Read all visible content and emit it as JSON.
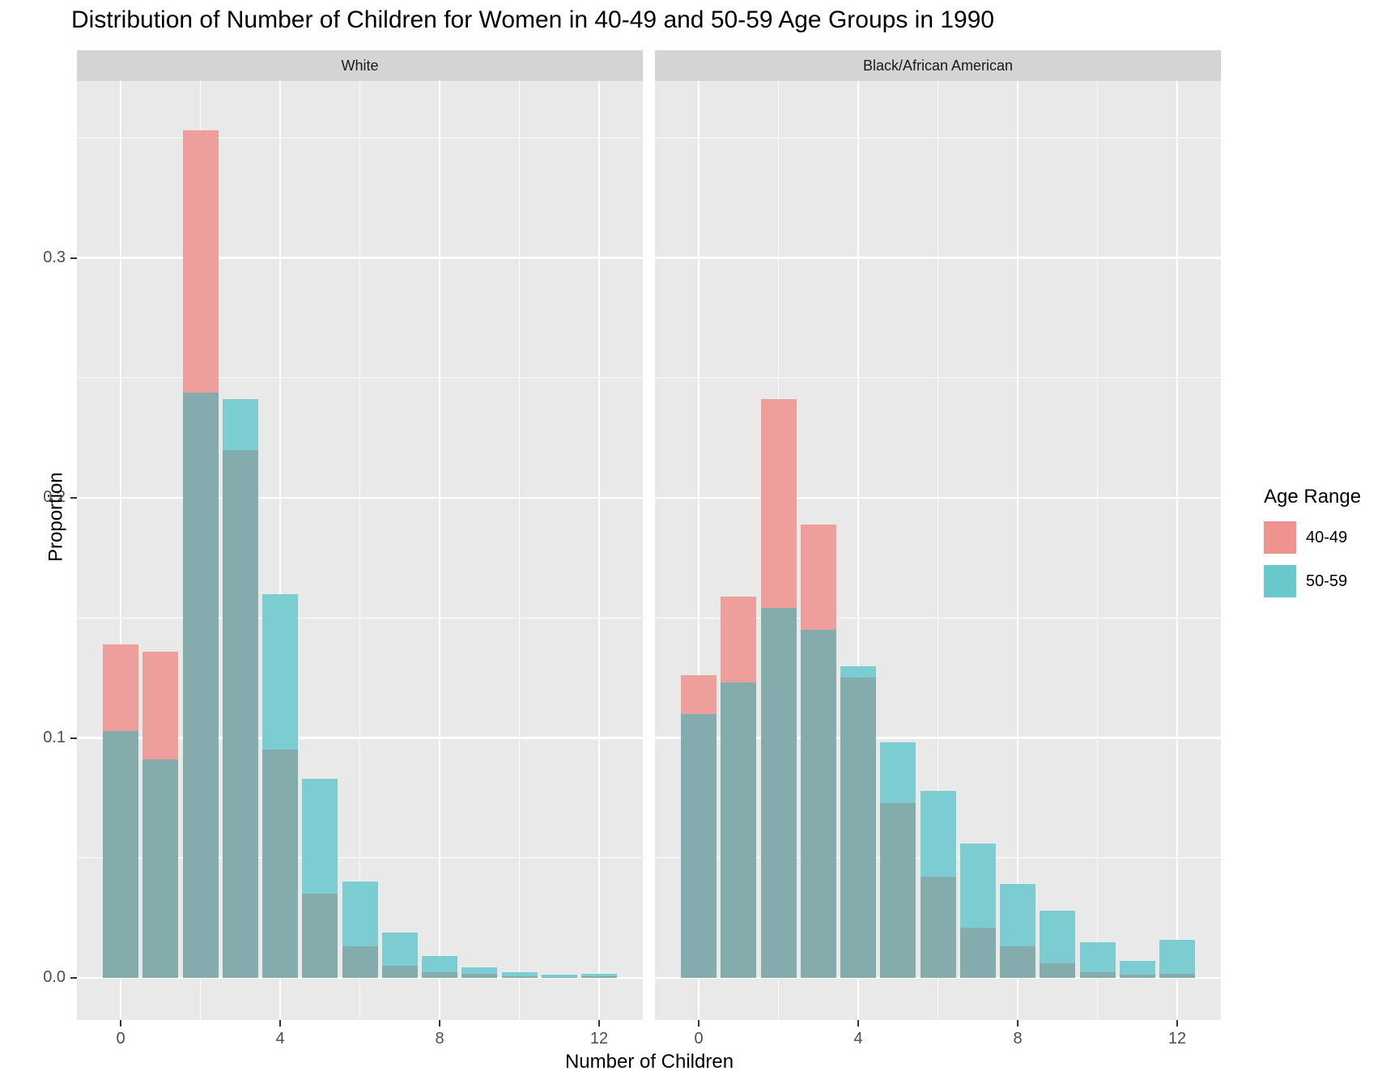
{
  "title": "Distribution of Number of Children for Women in 40-49 and 50-59 Age Groups in 1990",
  "legend": {
    "title": "Age Range",
    "items": [
      {
        "label": "40-49",
        "color": "#F0938E"
      },
      {
        "label": "50-59",
        "color": "#69C8CC"
      }
    ]
  },
  "colors": {
    "bar_40_49": "#EE9E9B",
    "bar_50_59": "#7BCDD1",
    "overlap": "#85ACAD",
    "panel_bg": "#E9E9E9",
    "strip_bg": "#D4D4D4",
    "grid": "#FFFFFF",
    "tick_label": "#4D4D4D"
  },
  "axes": {
    "x_tick_labels": [
      "0",
      "4",
      "8",
      "12"
    ],
    "x_tick_values": [
      0,
      4,
      8,
      12
    ],
    "y_tick_labels": [
      "0.0",
      "0.1",
      "0.2",
      "0.3"
    ],
    "y_tick_values": [
      0.0,
      0.1,
      0.2,
      0.3
    ],
    "xlabel": "Number of Children",
    "ylabel": "Proportion"
  },
  "chart_data": {
    "type": "bar",
    "subtype": "overlaid-identity-histogram",
    "title": "Distribution of Number of Children for Women in 40-49 and 50-59 Age Groups in 1990",
    "xlabel": "Number of Children",
    "ylabel": "Proportion",
    "x": [
      0,
      1,
      2,
      3,
      4,
      5,
      6,
      7,
      8,
      9,
      10,
      11,
      12
    ],
    "xlim": [
      -1.1,
      13.1
    ],
    "ylim": [
      0,
      0.374
    ],
    "y_major_ticks": [
      0.0,
      0.1,
      0.2,
      0.3
    ],
    "y_minor_ticks": [
      0.05,
      0.15,
      0.25,
      0.35
    ],
    "x_major_ticks": [
      0,
      4,
      8,
      12
    ],
    "x_minor_ticks": [
      2,
      6,
      10
    ],
    "grid": true,
    "legend_position": "right",
    "facets": [
      {
        "label": "White",
        "series": [
          {
            "name": "40-49",
            "values": [
              0.139,
              0.136,
              0.353,
              0.22,
              0.095,
              0.035,
              0.013,
              0.005,
              0.0025,
              0.0016,
              0.0008,
              0.0005,
              0.0008
            ]
          },
          {
            "name": "50-59",
            "values": [
              0.103,
              0.091,
              0.244,
              0.241,
              0.16,
              0.083,
              0.04,
              0.019,
              0.009,
              0.0045,
              0.0024,
              0.0014,
              0.0017
            ]
          }
        ]
      },
      {
        "label": "Black/African American",
        "series": [
          {
            "name": "40-49",
            "values": [
              0.126,
              0.159,
              0.241,
              0.189,
              0.125,
              0.073,
              0.042,
              0.021,
              0.013,
              0.006,
              0.0024,
              0.0013,
              0.0018
            ]
          },
          {
            "name": "50-59",
            "values": [
              0.11,
              0.123,
              0.154,
              0.145,
              0.13,
              0.098,
              0.078,
              0.056,
              0.039,
              0.028,
              0.015,
              0.007,
              0.016
            ]
          }
        ]
      }
    ]
  }
}
